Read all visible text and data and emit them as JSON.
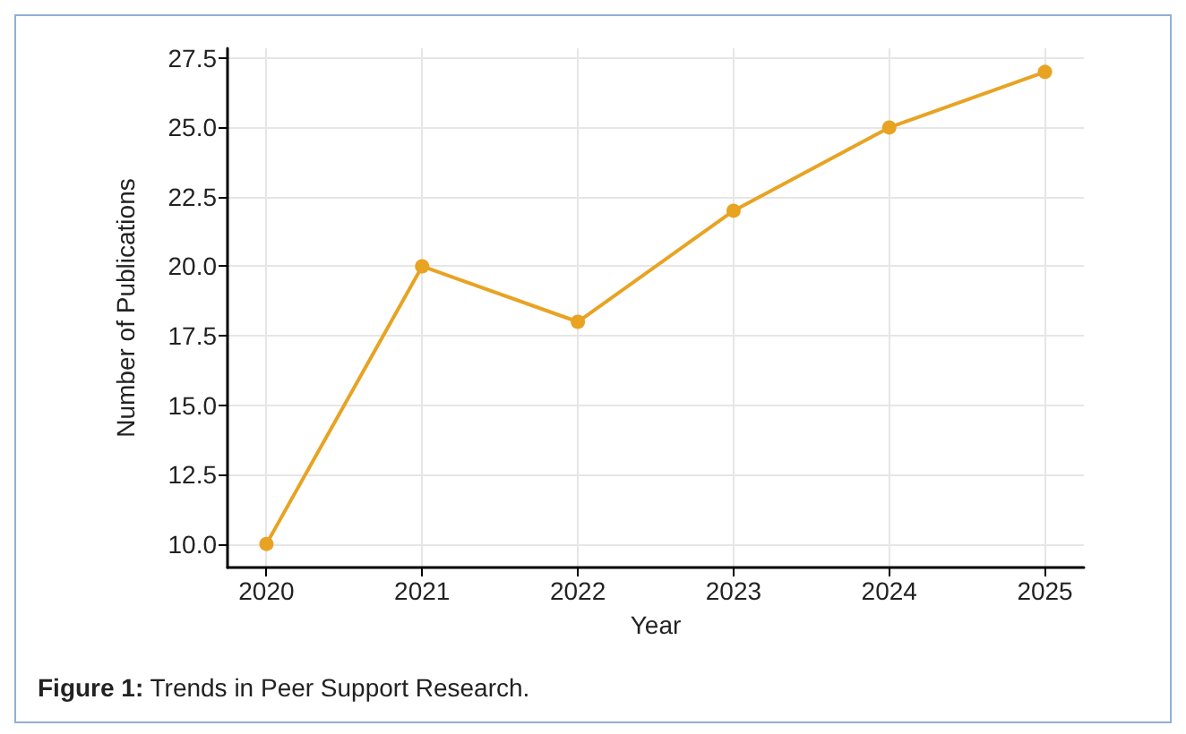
{
  "chart_data": {
    "type": "line",
    "xlabel": "Year",
    "ylabel": "Number of Publications",
    "annotations": [
      "Figure 1: Trends in Peer Support Research."
    ],
    "x": [
      2020,
      2021,
      2022,
      2023,
      2024,
      2025
    ],
    "series": [
      {
        "color": "#e8a323",
        "values": [
          10,
          20,
          18,
          22,
          25,
          27
        ]
      }
    ],
    "xlim": [
      2019.75,
      2025.25
    ],
    "xticks": [
      2020,
      2021,
      2022,
      2023,
      2024,
      2025
    ],
    "ylim": [
      9.15,
      27.85
    ],
    "yticks": [
      {
        "value": 10,
        "label": "10.0"
      },
      12.5,
      {
        "value": 15,
        "label": "15.0"
      },
      17.5,
      {
        "value": 20,
        "label": "20.0"
      },
      22.5,
      {
        "value": 25,
        "label": "25.0"
      },
      27.5
    ],
    "grid": true,
    "marker": "circle",
    "line_style": "solid"
  }
}
